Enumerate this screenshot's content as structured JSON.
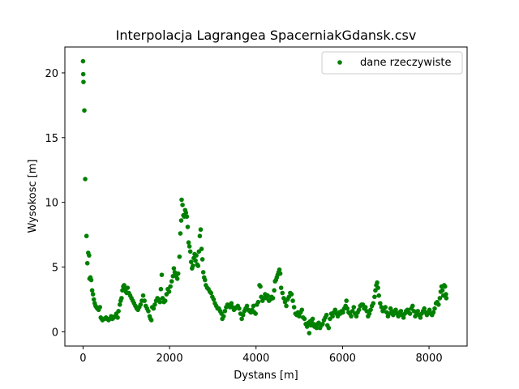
{
  "chart_data": {
    "type": "scatter",
    "title": "Interpolacja Lagrangea SpacerniakGdansk.csv",
    "xlabel": "Dystans [m]",
    "ylabel": "Wysokosc [m]",
    "xlim": [
      -420,
      8880
    ],
    "ylim": [
      -1.1,
      22.0
    ],
    "xticks": [
      0,
      2000,
      4000,
      6000,
      8000
    ],
    "yticks": [
      0,
      5,
      10,
      15,
      20
    ],
    "grid": false,
    "legend": {
      "placement": "top-right",
      "entries": [
        "dane rzeczywiste"
      ]
    },
    "series": [
      {
        "name": "dane rzeczywiste",
        "color": "#008000",
        "points": [
          [
            0,
            20.9
          ],
          [
            5,
            19.9
          ],
          [
            10,
            19.3
          ],
          [
            30,
            17.1
          ],
          [
            50,
            11.8
          ],
          [
            80,
            7.4
          ],
          [
            100,
            5.3
          ],
          [
            120,
            6.1
          ],
          [
            140,
            5.9
          ],
          [
            150,
            4.1
          ],
          [
            170,
            4.2
          ],
          [
            190,
            4.0
          ],
          [
            210,
            3.2
          ],
          [
            230,
            2.9
          ],
          [
            250,
            2.5
          ],
          [
            270,
            2.2
          ],
          [
            290,
            2.0
          ],
          [
            310,
            1.9
          ],
          [
            330,
            1.8
          ],
          [
            360,
            1.7
          ],
          [
            390,
            1.9
          ],
          [
            410,
            1.1
          ],
          [
            430,
            1.0
          ],
          [
            450,
            0.9
          ],
          [
            480,
            1.0
          ],
          [
            500,
            1.0
          ],
          [
            530,
            1.1
          ],
          [
            560,
            1.0
          ],
          [
            590,
            0.9
          ],
          [
            620,
            1.0
          ],
          [
            650,
            1.2
          ],
          [
            680,
            1.0
          ],
          [
            710,
            1.1
          ],
          [
            740,
            1.2
          ],
          [
            770,
            1.4
          ],
          [
            800,
            1.1
          ],
          [
            820,
            1.6
          ],
          [
            850,
            2.1
          ],
          [
            870,
            2.4
          ],
          [
            890,
            2.6
          ],
          [
            910,
            3.2
          ],
          [
            930,
            3.5
          ],
          [
            950,
            3.6
          ],
          [
            970,
            3.3
          ],
          [
            990,
            3.1
          ],
          [
            1010,
            3.0
          ],
          [
            1030,
            3.4
          ],
          [
            1060,
            3.0
          ],
          [
            1090,
            2.8
          ],
          [
            1120,
            2.6
          ],
          [
            1150,
            2.4
          ],
          [
            1180,
            2.2
          ],
          [
            1210,
            2.0
          ],
          [
            1240,
            1.8
          ],
          [
            1270,
            1.7
          ],
          [
            1300,
            1.9
          ],
          [
            1330,
            2.1
          ],
          [
            1360,
            2.4
          ],
          [
            1390,
            2.8
          ],
          [
            1420,
            2.4
          ],
          [
            1450,
            2.0
          ],
          [
            1480,
            1.8
          ],
          [
            1510,
            1.6
          ],
          [
            1540,
            1.2
          ],
          [
            1560,
            1.0
          ],
          [
            1580,
            0.9
          ],
          [
            1600,
            1.9
          ],
          [
            1630,
            1.8
          ],
          [
            1660,
            2.1
          ],
          [
            1690,
            2.4
          ],
          [
            1720,
            2.6
          ],
          [
            1750,
            2.5
          ],
          [
            1780,
            2.3
          ],
          [
            1800,
            3.3
          ],
          [
            1820,
            4.4
          ],
          [
            1840,
            2.6
          ],
          [
            1870,
            2.3
          ],
          [
            1900,
            2.4
          ],
          [
            1930,
            2.9
          ],
          [
            1960,
            3.3
          ],
          [
            1990,
            3.1
          ],
          [
            2020,
            3.5
          ],
          [
            2050,
            3.9
          ],
          [
            2080,
            4.3
          ],
          [
            2100,
            4.9
          ],
          [
            2120,
            4.6
          ],
          [
            2150,
            4.3
          ],
          [
            2180,
            4.1
          ],
          [
            2200,
            4.5
          ],
          [
            2230,
            5.8
          ],
          [
            2250,
            7.6
          ],
          [
            2270,
            8.6
          ],
          [
            2280,
            10.2
          ],
          [
            2300,
            9.8
          ],
          [
            2320,
            9.0
          ],
          [
            2340,
            8.9
          ],
          [
            2360,
            9.4
          ],
          [
            2380,
            9.2
          ],
          [
            2400,
            8.9
          ],
          [
            2420,
            8.1
          ],
          [
            2440,
            6.9
          ],
          [
            2460,
            6.6
          ],
          [
            2480,
            6.2
          ],
          [
            2500,
            5.4
          ],
          [
            2520,
            4.9
          ],
          [
            2540,
            5.1
          ],
          [
            2560,
            5.7
          ],
          [
            2580,
            6.0
          ],
          [
            2600,
            5.5
          ],
          [
            2620,
            5.9
          ],
          [
            2640,
            5.2
          ],
          [
            2660,
            5.1
          ],
          [
            2680,
            6.2
          ],
          [
            2700,
            7.4
          ],
          [
            2720,
            7.9
          ],
          [
            2740,
            6.4
          ],
          [
            2760,
            5.6
          ],
          [
            2780,
            4.6
          ],
          [
            2800,
            4.2
          ],
          [
            2820,
            4.0
          ],
          [
            2840,
            3.6
          ],
          [
            2870,
            3.4
          ],
          [
            2900,
            3.3
          ],
          [
            2930,
            3.1
          ],
          [
            2960,
            3.0
          ],
          [
            2990,
            2.7
          ],
          [
            3020,
            2.5
          ],
          [
            3050,
            2.2
          ],
          [
            3080,
            2.0
          ],
          [
            3110,
            1.8
          ],
          [
            3140,
            1.8
          ],
          [
            3170,
            1.6
          ],
          [
            3200,
            1.4
          ],
          [
            3220,
            1.0
          ],
          [
            3250,
            1.2
          ],
          [
            3280,
            1.6
          ],
          [
            3310,
            1.9
          ],
          [
            3340,
            2.1
          ],
          [
            3370,
            2.0
          ],
          [
            3400,
            1.9
          ],
          [
            3430,
            2.2
          ],
          [
            3460,
            1.9
          ],
          [
            3490,
            1.7
          ],
          [
            3520,
            1.8
          ],
          [
            3550,
            1.9
          ],
          [
            3580,
            2.0
          ],
          [
            3610,
            1.8
          ],
          [
            3640,
            1.4
          ],
          [
            3670,
            1.0
          ],
          [
            3700,
            1.3
          ],
          [
            3730,
            1.6
          ],
          [
            3760,
            1.8
          ],
          [
            3790,
            2.0
          ],
          [
            3820,
            1.7
          ],
          [
            3850,
            1.6
          ],
          [
            3880,
            1.5
          ],
          [
            3910,
            1.7
          ],
          [
            3940,
            2.0
          ],
          [
            3960,
            1.5
          ],
          [
            3990,
            1.4
          ],
          [
            4020,
            2.1
          ],
          [
            4050,
            2.3
          ],
          [
            4080,
            3.6
          ],
          [
            4100,
            3.5
          ],
          [
            4120,
            2.7
          ],
          [
            4150,
            2.4
          ],
          [
            4180,
            2.6
          ],
          [
            4210,
            2.9
          ],
          [
            4240,
            2.6
          ],
          [
            4270,
            2.8
          ],
          [
            4300,
            2.4
          ],
          [
            4330,
            2.5
          ],
          [
            4360,
            2.7
          ],
          [
            4390,
            2.6
          ],
          [
            4420,
            3.2
          ],
          [
            4440,
            3.9
          ],
          [
            4460,
            4.0
          ],
          [
            4480,
            4.2
          ],
          [
            4500,
            4.4
          ],
          [
            4520,
            4.6
          ],
          [
            4540,
            4.8
          ],
          [
            4560,
            4.5
          ],
          [
            4580,
            3.4
          ],
          [
            4610,
            3.0
          ],
          [
            4640,
            2.6
          ],
          [
            4670,
            2.3
          ],
          [
            4700,
            2.0
          ],
          [
            4730,
            2.5
          ],
          [
            4760,
            2.7
          ],
          [
            4790,
            3.0
          ],
          [
            4820,
            2.9
          ],
          [
            4850,
            2.4
          ],
          [
            4880,
            1.9
          ],
          [
            4910,
            1.4
          ],
          [
            4940,
            1.3
          ],
          [
            4970,
            1.5
          ],
          [
            5000,
            1.2
          ],
          [
            5030,
            1.5
          ],
          [
            5060,
            1.7
          ],
          [
            5090,
            1.1
          ],
          [
            5120,
            1.0
          ],
          [
            5150,
            0.6
          ],
          [
            5180,
            0.4
          ],
          [
            5210,
            0.7
          ],
          [
            5230,
            -0.1
          ],
          [
            5250,
            0.8
          ],
          [
            5270,
            0.5
          ],
          [
            5290,
            0.9
          ],
          [
            5310,
            1.0
          ],
          [
            5330,
            0.6
          ],
          [
            5350,
            0.4
          ],
          [
            5380,
            0.5
          ],
          [
            5400,
            0.3
          ],
          [
            5420,
            0.6
          ],
          [
            5450,
            0.7
          ],
          [
            5480,
            0.3
          ],
          [
            5510,
            0.5
          ],
          [
            5540,
            0.6
          ],
          [
            5570,
            0.9
          ],
          [
            5600,
            1.1
          ],
          [
            5630,
            1.3
          ],
          [
            5650,
            0.5
          ],
          [
            5680,
            0.3
          ],
          [
            5710,
            1.0
          ],
          [
            5740,
            1.4
          ],
          [
            5770,
            1.2
          ],
          [
            5800,
            1.5
          ],
          [
            5830,
            1.7
          ],
          [
            5860,
            1.4
          ],
          [
            5890,
            1.2
          ],
          [
            5920,
            1.5
          ],
          [
            5950,
            1.4
          ],
          [
            5980,
            1.6
          ],
          [
            6010,
            1.5
          ],
          [
            6040,
            1.8
          ],
          [
            6070,
            2.0
          ],
          [
            6090,
            2.4
          ],
          [
            6110,
            1.8
          ],
          [
            6140,
            1.5
          ],
          [
            6170,
            1.4
          ],
          [
            6200,
            1.2
          ],
          [
            6230,
            1.6
          ],
          [
            6260,
            1.9
          ],
          [
            6290,
            1.4
          ],
          [
            6320,
            1.2
          ],
          [
            6350,
            1.5
          ],
          [
            6380,
            1.7
          ],
          [
            6410,
            2.0
          ],
          [
            6440,
            2.1
          ],
          [
            6470,
            2.1
          ],
          [
            6500,
            1.8
          ],
          [
            6530,
            1.9
          ],
          [
            6560,
            1.6
          ],
          [
            6590,
            1.2
          ],
          [
            6620,
            1.4
          ],
          [
            6650,
            1.7
          ],
          [
            6680,
            2.0
          ],
          [
            6710,
            2.2
          ],
          [
            6740,
            2.7
          ],
          [
            6760,
            3.2
          ],
          [
            6780,
            3.6
          ],
          [
            6800,
            3.8
          ],
          [
            6820,
            3.4
          ],
          [
            6840,
            2.8
          ],
          [
            6870,
            2.2
          ],
          [
            6900,
            1.9
          ],
          [
            6930,
            1.6
          ],
          [
            6960,
            1.8
          ],
          [
            6990,
            1.9
          ],
          [
            7020,
            1.5
          ],
          [
            7050,
            1.2
          ],
          [
            7080,
            1.4
          ],
          [
            7110,
            1.8
          ],
          [
            7140,
            1.6
          ],
          [
            7170,
            1.3
          ],
          [
            7200,
            1.5
          ],
          [
            7230,
            1.7
          ],
          [
            7260,
            1.4
          ],
          [
            7290,
            1.2
          ],
          [
            7320,
            1.5
          ],
          [
            7350,
            1.6
          ],
          [
            7380,
            1.3
          ],
          [
            7410,
            1.1
          ],
          [
            7440,
            1.4
          ],
          [
            7470,
            1.6
          ],
          [
            7500,
            1.7
          ],
          [
            7530,
            1.5
          ],
          [
            7560,
            1.4
          ],
          [
            7590,
            1.8
          ],
          [
            7620,
            2.0
          ],
          [
            7650,
            1.6
          ],
          [
            7680,
            1.2
          ],
          [
            7710,
            1.4
          ],
          [
            7740,
            1.6
          ],
          [
            7770,
            1.3
          ],
          [
            7800,
            1.1
          ],
          [
            7830,
            1.4
          ],
          [
            7860,
            1.6
          ],
          [
            7890,
            1.8
          ],
          [
            7920,
            1.5
          ],
          [
            7950,
            1.3
          ],
          [
            7980,
            1.5
          ],
          [
            8010,
            1.7
          ],
          [
            8040,
            1.4
          ],
          [
            8070,
            1.3
          ],
          [
            8100,
            1.5
          ],
          [
            8130,
            1.8
          ],
          [
            8160,
            2.2
          ],
          [
            8190,
            2.3
          ],
          [
            8220,
            2.1
          ],
          [
            8250,
            2.6
          ],
          [
            8270,
            3.1
          ],
          [
            8290,
            3.5
          ],
          [
            8310,
            3.2
          ],
          [
            8330,
            2.8
          ],
          [
            8350,
            3.6
          ],
          [
            8370,
            3.5
          ],
          [
            8390,
            2.9
          ],
          [
            8400,
            2.6
          ]
        ]
      }
    ]
  }
}
